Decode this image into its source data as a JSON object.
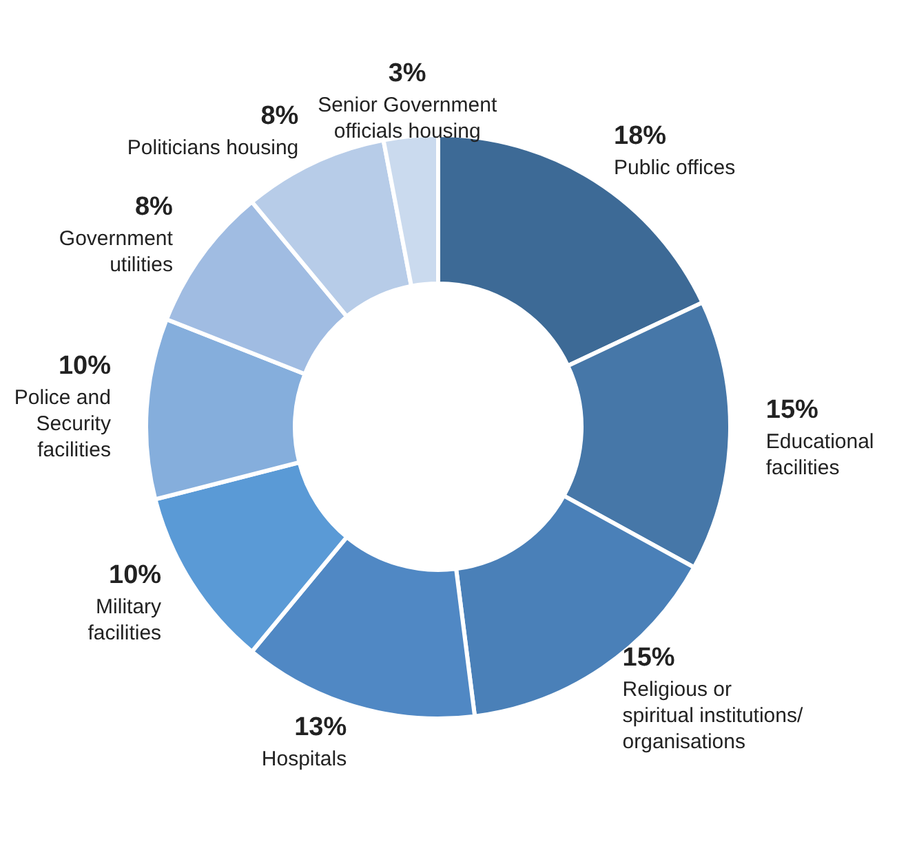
{
  "chart_data": {
    "type": "donut",
    "categories": [
      "Public offices",
      "Educational facilities",
      "Religious or spiritual institutions/ organisations",
      "Hospitals",
      "Military facilities",
      "Police and Security facilities",
      "Government utilities",
      "Politicians housing",
      "Senior Government officials housing"
    ],
    "values": [
      18,
      15,
      15,
      13,
      10,
      10,
      8,
      8,
      3
    ],
    "colors": [
      "#3d6a96",
      "#4677a8",
      "#4a80b8",
      "#5088c4",
      "#5a9ad6",
      "#85aedc",
      "#a0bce2",
      "#b7cce8",
      "#cadaee"
    ],
    "value_labels": [
      "18%",
      "15%",
      "15%",
      "13%",
      "10%",
      "10%",
      "8%",
      "8%",
      "3%"
    ]
  }
}
